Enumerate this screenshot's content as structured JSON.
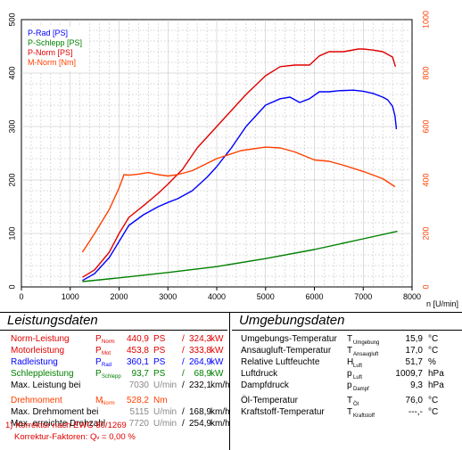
{
  "chart_data": {
    "type": "line",
    "xlabel": "n [U/min]",
    "xlim": [
      0,
      8000
    ],
    "x_ticks": [
      "0",
      "1000",
      "2000",
      "3000",
      "4000",
      "5000",
      "6000",
      "7000",
      "8000"
    ],
    "left_ylim": [
      0,
      500
    ],
    "left_ticks": [
      "0",
      "100",
      "200",
      "300",
      "400",
      "500"
    ],
    "right_ylim": [
      0,
      1000
    ],
    "right_ticks": [
      "0",
      "200",
      "400",
      "600",
      "800",
      "1000"
    ],
    "grid": true,
    "legend_placement": "top-left",
    "series": [
      {
        "name": "P-Rad [PS]",
        "color": "#0000ff",
        "axis": "left",
        "x": [
          1250,
          1500,
          1800,
          2000,
          2200,
          2500,
          2800,
          3000,
          3200,
          3500,
          3800,
          4000,
          4300,
          4600,
          5000,
          5300,
          5500,
          5700,
          5900,
          6100,
          6300,
          6500,
          6800,
          7000,
          7200,
          7400,
          7500,
          7600,
          7650,
          7680
        ],
        "y": [
          12,
          25,
          55,
          85,
          115,
          135,
          150,
          158,
          165,
          180,
          205,
          225,
          260,
          300,
          340,
          352,
          355,
          345,
          352,
          365,
          365,
          367,
          368,
          366,
          362,
          355,
          350,
          338,
          320,
          295
        ]
      },
      {
        "name": "P-Schlepp [PS]",
        "color": "#008000",
        "axis": "left",
        "x": [
          1250,
          2000,
          3000,
          4000,
          5000,
          6000,
          7000,
          7700
        ],
        "y": [
          10,
          17,
          27,
          38,
          53,
          70,
          90,
          104
        ]
      },
      {
        "name": "P-Norm [PS]",
        "color": "#e00000",
        "axis": "left",
        "x": [
          1250,
          1500,
          1800,
          2000,
          2200,
          2500,
          2800,
          3000,
          3300,
          3600,
          4000,
          4300,
          4600,
          5000,
          5300,
          5600,
          5900,
          6100,
          6300,
          6600,
          6900,
          7000,
          7200,
          7400,
          7600,
          7660
        ],
        "y": [
          18,
          32,
          65,
          100,
          130,
          152,
          175,
          192,
          220,
          260,
          300,
          330,
          360,
          395,
          412,
          415,
          415,
          432,
          440,
          440,
          445,
          445,
          443,
          440,
          430,
          412
        ]
      },
      {
        "name": "M-Norm [Nm]",
        "color": "#ff4000",
        "axis": "right",
        "x": [
          1250,
          1500,
          1800,
          2000,
          2100,
          2200,
          2400,
          2600,
          2800,
          3000,
          3200,
          3500,
          4000,
          4500,
          5000,
          5300,
          5600,
          5800,
          6000,
          6300,
          6600,
          7000,
          7400,
          7650
        ],
        "y": [
          130,
          200,
          290,
          370,
          420,
          418,
          422,
          428,
          420,
          415,
          420,
          435,
          480,
          510,
          523,
          520,
          505,
          490,
          475,
          470,
          455,
          432,
          405,
          375
        ]
      }
    ]
  },
  "leistung": {
    "title": "Leistungsdaten",
    "rows": [
      {
        "label": "Norm-Leistung",
        "sup": "1)",
        "sym": "P",
        "sub": "Norm",
        "v1": "440,9",
        "u1": "PS",
        "sep": "/",
        "v2": "324,3",
        "u2": "kW",
        "color": "#e00000"
      },
      {
        "label": "Motorleistung",
        "sup": "",
        "sym": "P",
        "sub": "Mot",
        "v1": "453,8",
        "u1": "PS",
        "sep": "/",
        "v2": "333,8",
        "u2": "kW",
        "color": "#e00000"
      },
      {
        "label": "Radleistung",
        "sup": "",
        "sym": "P",
        "sub": "Rad",
        "v1": "360,1",
        "u1": "PS",
        "sep": "/",
        "v2": "264,9",
        "u2": "kW",
        "color": "#0000ff"
      },
      {
        "label": "Schleppleistung",
        "sup": "",
        "sym": "P",
        "sub": "Schlepp",
        "v1": "93,7",
        "u1": "PS",
        "sep": "/",
        "v2": "68,9",
        "u2": "kW",
        "color": "#008000"
      },
      {
        "label": "Max. Leistung bei",
        "sup": "",
        "sym": "",
        "sub": "",
        "v1": "7030",
        "u1": "U/min",
        "sep": "/",
        "v2": "232,1",
        "u2": "km/h",
        "color": "#000000"
      },
      {
        "label": "Drehmoment",
        "sup": "1)",
        "sym": "M",
        "sub": "Norm",
        "v1": "528,2",
        "u1": "Nm",
        "sep": "",
        "v2": "",
        "u2": "",
        "color": "#ff4000"
      },
      {
        "label": "Max. Drehmoment bei",
        "sup": "",
        "sym": "",
        "sub": "",
        "v1": "5115",
        "u1": "U/min",
        "sep": "/",
        "v2": "168,9",
        "u2": "km/h",
        "color": "#000000"
      },
      {
        "label": "Max. erreichte Drehzahl",
        "sup": "",
        "sym": "",
        "sub": "",
        "v1": "7720",
        "u1": "U/min",
        "sep": "/",
        "v2": "254,9",
        "u2": "km/h",
        "color": "#000000"
      }
    ],
    "note1": "1) Korrektur nach EWG 80/1269",
    "note2": "Korrektur-Faktoren: Q",
    "note2_sub": "v",
    "note2_val": "=  0,00 %"
  },
  "umgebung": {
    "title": "Umgebungsdaten",
    "rows": [
      {
        "label": "Umgebungs-Temperatur",
        "sym": "T",
        "sub": "Umgebung",
        "val": "15,9",
        "unit": "°C"
      },
      {
        "label": "Ansaugluft-Temperatur",
        "sym": "T",
        "sub": "Ansaugluft",
        "val": "17,0",
        "unit": "°C"
      },
      {
        "label": "Relative Luftfeuchte",
        "sym": "H",
        "sub": "Luft",
        "val": "51,7",
        "unit": "%"
      },
      {
        "label": "Luftdruck",
        "sym": "p",
        "sub": "Luft",
        "val": "1009,7",
        "unit": "hPa"
      },
      {
        "label": "Dampfdruck",
        "sym": "p",
        "sub": "Dampf",
        "val": "9,3",
        "unit": "hPa"
      },
      {
        "label": "Öl-Temperatur",
        "sym": "T",
        "sub": "Öl",
        "val": "76,0",
        "unit": "°C"
      },
      {
        "label": "Kraftstoff-Temperatur",
        "sym": "T",
        "sub": "Kraftstoff",
        "val": "---,-",
        "unit": "°C"
      }
    ]
  }
}
